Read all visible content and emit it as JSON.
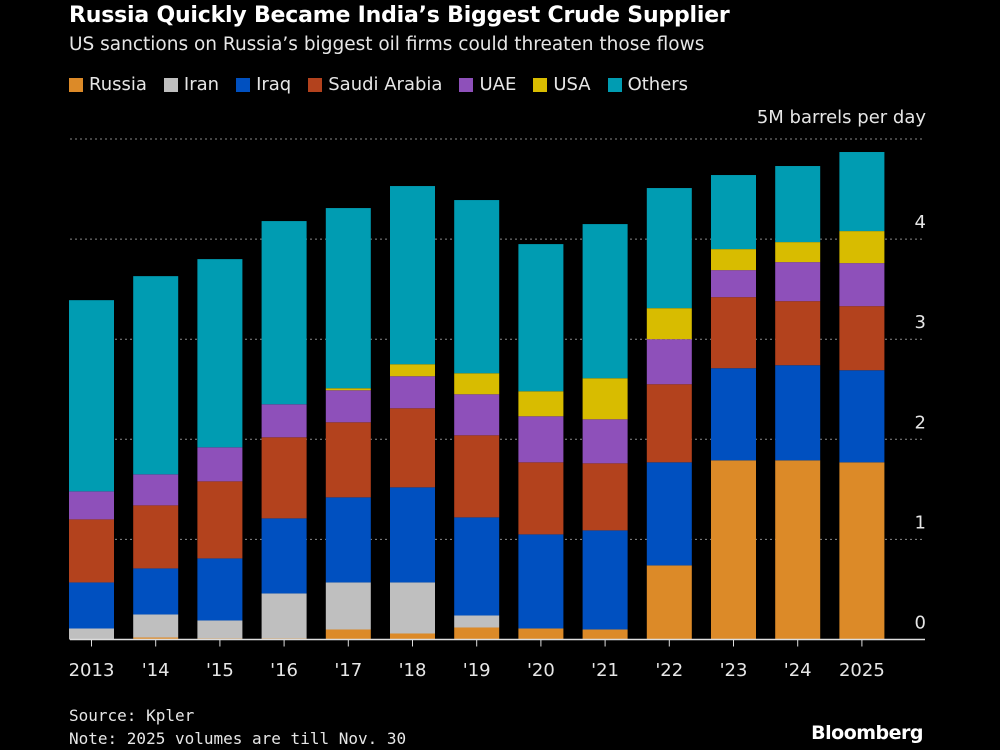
{
  "title": "Russia Quickly Became India’s Biggest Crude Supplier",
  "subtitle": "US sanctions on Russia’s biggest oil firms could threaten those flows",
  "footer": {
    "source": "Source: Kpler",
    "note": "Note: 2025 volumes are till Nov. 30",
    "logo": "Bloomberg"
  },
  "chart_data": {
    "type": "bar",
    "stacked": true,
    "title": "Russia Quickly Became India’s Biggest Crude Supplier",
    "ylabel": "5M barrels per day",
    "ylim": [
      0,
      5
    ],
    "yticks": [
      "0",
      "1",
      "2",
      "3",
      "4"
    ],
    "grid": true,
    "legend": "top",
    "categories": [
      "2013",
      "'14",
      "'15",
      "'16",
      "'17",
      "'18",
      "'19",
      "'20",
      "'21",
      "'22",
      "'23",
      "'24",
      "2025"
    ],
    "series": [
      {
        "name": "Russia",
        "color": "#dc8a28",
        "values": [
          0.0,
          0.02,
          0.01,
          0.01,
          0.1,
          0.06,
          0.12,
          0.11,
          0.1,
          0.74,
          1.79,
          1.79,
          1.77
        ]
      },
      {
        "name": "Iran",
        "color": "#bfbfbf",
        "values": [
          0.11,
          0.23,
          0.18,
          0.45,
          0.47,
          0.51,
          0.12,
          0.0,
          0.0,
          0.0,
          0.0,
          0.0,
          0.0
        ]
      },
      {
        "name": "Iraq",
        "color": "#0050c0",
        "values": [
          0.46,
          0.46,
          0.62,
          0.75,
          0.85,
          0.95,
          0.98,
          0.94,
          0.99,
          1.03,
          0.92,
          0.95,
          0.92
        ]
      },
      {
        "name": "Saudi Arabia",
        "color": "#b3421d",
        "values": [
          0.63,
          0.63,
          0.77,
          0.81,
          0.75,
          0.79,
          0.82,
          0.72,
          0.67,
          0.78,
          0.71,
          0.64,
          0.64
        ]
      },
      {
        "name": "UAE",
        "color": "#8e50ba",
        "values": [
          0.28,
          0.31,
          0.34,
          0.33,
          0.32,
          0.32,
          0.41,
          0.46,
          0.44,
          0.45,
          0.27,
          0.39,
          0.43
        ]
      },
      {
        "name": "USA",
        "color": "#d8bc00",
        "values": [
          0.0,
          0.0,
          0.0,
          0.0,
          0.02,
          0.12,
          0.21,
          0.25,
          0.41,
          0.31,
          0.21,
          0.2,
          0.32
        ]
      },
      {
        "name": "Others",
        "color": "#009cb2",
        "values": [
          1.91,
          1.98,
          1.88,
          1.83,
          1.8,
          1.78,
          1.73,
          1.47,
          1.54,
          1.2,
          0.74,
          0.76,
          0.79
        ]
      }
    ]
  }
}
